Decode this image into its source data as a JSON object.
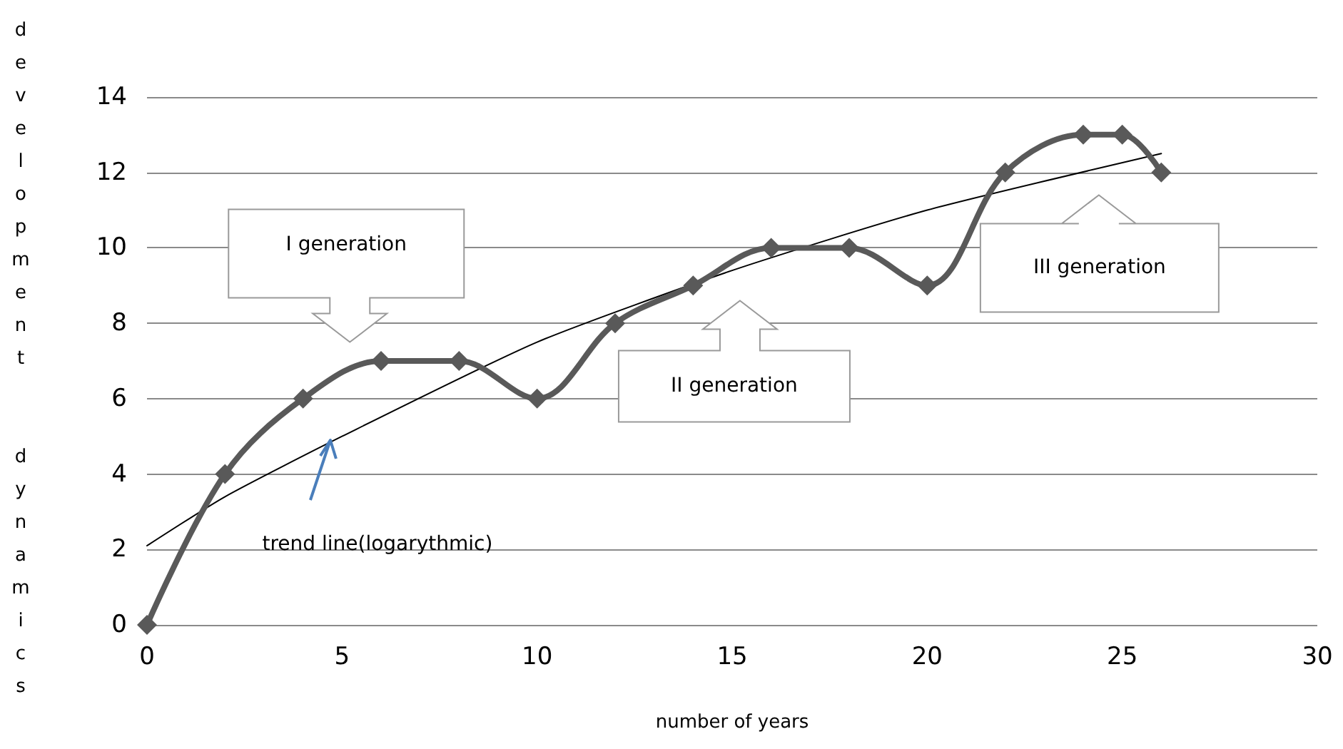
{
  "chart_data": {
    "type": "line",
    "xlabel": "number of years",
    "ylabel": "development  dynamics",
    "xlim": [
      0,
      30
    ],
    "xticks": [
      0,
      5,
      10,
      15,
      20,
      25,
      30
    ],
    "ylim": [
      0,
      14
    ],
    "yticks": [
      0,
      2,
      4,
      6,
      8,
      10,
      12,
      14
    ],
    "grid": "y",
    "marker": "diamond",
    "line_style": "solid",
    "series": [
      {
        "color": "#595959",
        "x": [
          0,
          2,
          4,
          6,
          8,
          10,
          12,
          14,
          16,
          18,
          20,
          22,
          24,
          25,
          26
        ],
        "values": [
          0,
          4,
          6,
          7,
          7,
          6,
          8,
          9,
          10,
          10,
          9,
          12,
          13,
          13,
          12
        ]
      },
      {
        "type": "line",
        "color": "#000000",
        "marker": "none",
        "x": [
          0,
          2,
          5,
          10,
          15,
          20,
          26
        ],
        "values": [
          2.1,
          3.4,
          5.0,
          7.5,
          9.4,
          11.0,
          12.5
        ]
      }
    ],
    "annotations": [
      "I generation",
      "II generation",
      "III generation",
      "trend line(logarythmic)"
    ]
  }
}
